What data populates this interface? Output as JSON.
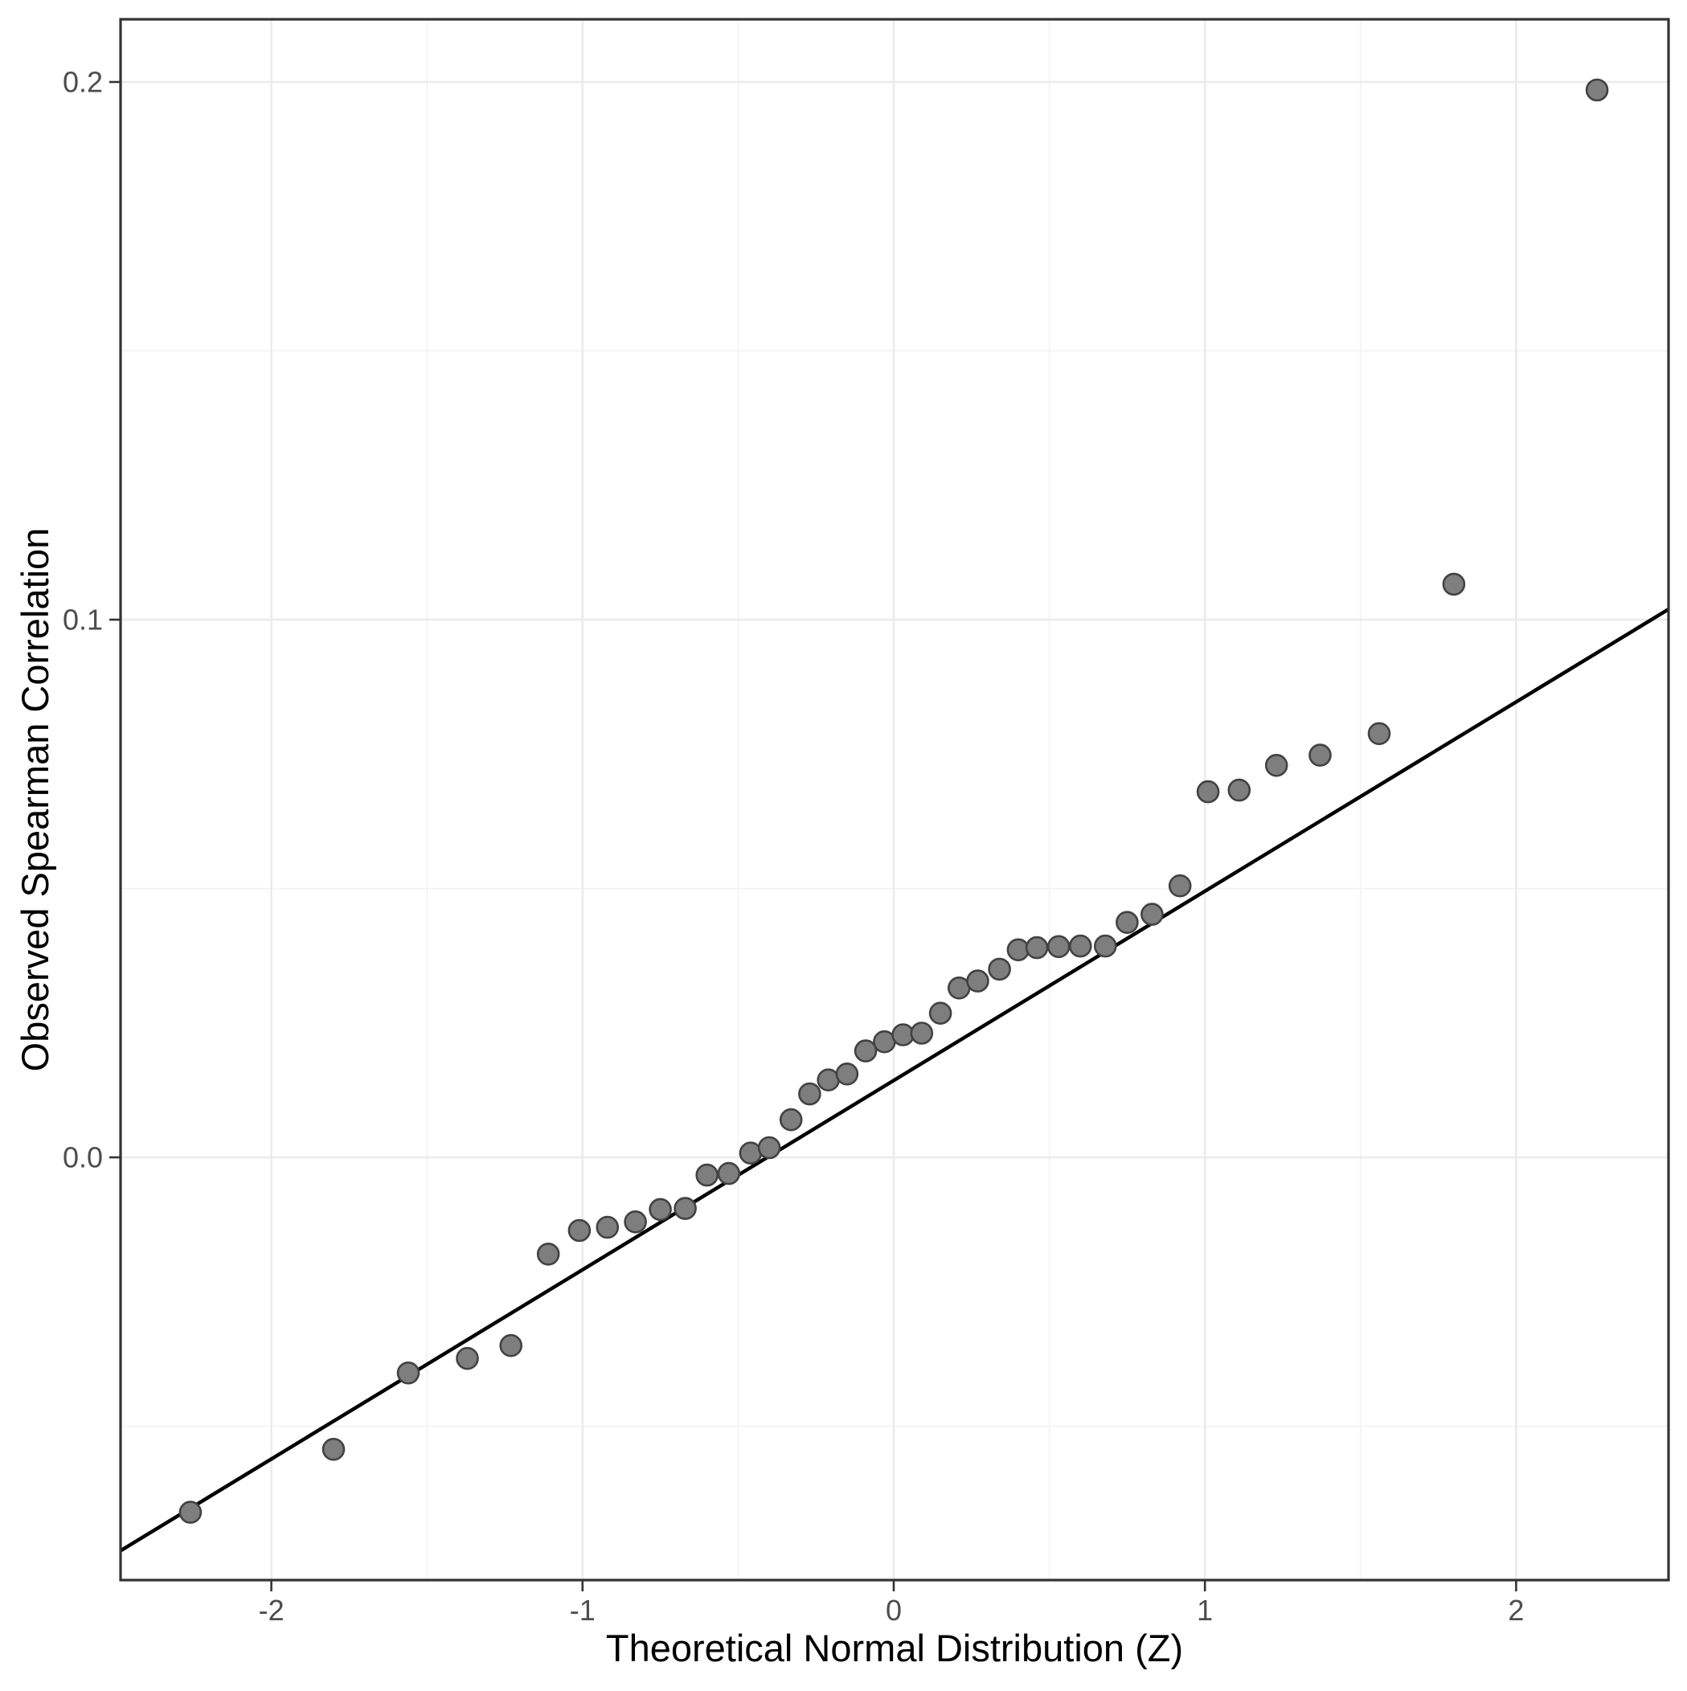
{
  "figure": {
    "kind": "qq-plot",
    "background": "#FFFFFF"
  },
  "style": {
    "panel_border_color": "#333333",
    "grid_major_color": "#EBEBEB",
    "grid_minor_color": "#F2F2F2",
    "tick_color": "#333333",
    "tick_label_color": "#4D4D4D",
    "axis_title_color": "#000000",
    "point_fill": "#7E7E7E",
    "point_stroke": "#424242",
    "reference_line_color": "#000000"
  },
  "chart_data": {
    "type": "scatter",
    "title": "",
    "xlabel": "Theoretical Normal Distribution (Z)",
    "ylabel": "Observed Spearman Correlation",
    "xlim": [
      -2.4845,
      2.4897
    ],
    "ylim": [
      -0.07862,
      0.21166
    ],
    "grid": "on",
    "legend_position": "none",
    "x_ticks": [
      -2,
      -1,
      0,
      1,
      2
    ],
    "x_tick_labels": [
      "-2",
      "-1",
      "0",
      "1",
      "2"
    ],
    "x_minor_ticks": [
      -1.5,
      -0.5,
      0.5,
      1.5
    ],
    "y_ticks": [
      0.0,
      0.1,
      0.2
    ],
    "y_tick_labels": [
      "0.0",
      "0.1",
      "0.2"
    ],
    "y_minor_ticks": [
      -0.05,
      0.05,
      0.15
    ],
    "points": [
      [
        -2.26,
        -0.066
      ],
      [
        -1.8,
        -0.0543
      ],
      [
        -1.56,
        -0.0401
      ],
      [
        -1.37,
        -0.0374
      ],
      [
        -1.23,
        -0.035
      ],
      [
        -1.11,
        -0.018
      ],
      [
        -1.01,
        -0.0136
      ],
      [
        -0.92,
        -0.013
      ],
      [
        -0.83,
        -0.012
      ],
      [
        -0.75,
        -0.0097
      ],
      [
        -0.67,
        -0.0095
      ],
      [
        -0.6,
        -0.0033
      ],
      [
        -0.53,
        -0.003
      ],
      [
        -0.46,
        0.0008
      ],
      [
        -0.4,
        0.0018
      ],
      [
        -0.33,
        0.007
      ],
      [
        -0.27,
        0.0118
      ],
      [
        -0.21,
        0.0144
      ],
      [
        -0.15,
        0.0155
      ],
      [
        -0.09,
        0.0198
      ],
      [
        -0.03,
        0.0215
      ],
      [
        0.03,
        0.0228
      ],
      [
        0.09,
        0.0231
      ],
      [
        0.15,
        0.0268
      ],
      [
        0.21,
        0.0315
      ],
      [
        0.27,
        0.0328
      ],
      [
        0.34,
        0.035
      ],
      [
        0.4,
        0.0386
      ],
      [
        0.46,
        0.039
      ],
      [
        0.53,
        0.0392
      ],
      [
        0.6,
        0.0393
      ],
      [
        0.68,
        0.0393
      ],
      [
        0.75,
        0.0437
      ],
      [
        0.83,
        0.0452
      ],
      [
        0.92,
        0.0505
      ],
      [
        1.01,
        0.068
      ],
      [
        1.11,
        0.0683
      ],
      [
        1.23,
        0.0729
      ],
      [
        1.37,
        0.0748
      ],
      [
        1.56,
        0.0788
      ],
      [
        1.8,
        0.1066
      ],
      [
        2.26,
        0.1985
      ]
    ],
    "n_points": 42,
    "reference_line": {
      "slope": 0.0352,
      "intercept": 0.0143
    }
  }
}
